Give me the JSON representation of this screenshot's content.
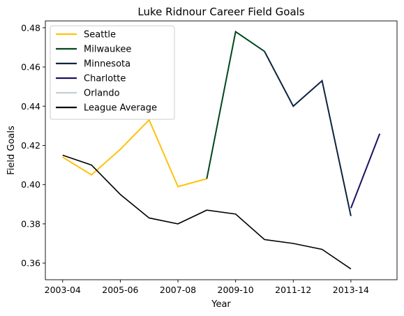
{
  "chart_data": {
    "type": "line",
    "title": "Luke Ridnour Career Field Goals",
    "xlabel": "Year",
    "ylabel": "Field Goals",
    "x_tick_labels": [
      "2003-04",
      "2005-06",
      "2007-08",
      "2009-10",
      "2011-12",
      "2013-14"
    ],
    "x_tick_positions": [
      0,
      2,
      4,
      6,
      8,
      10
    ],
    "xlim": [
      -0.6,
      11.6
    ],
    "y_ticks": [
      0.36,
      0.38,
      0.4,
      0.42,
      0.44,
      0.46,
      0.48
    ],
    "y_tick_labels": [
      "0.36",
      "0.38",
      "0.40",
      "0.42",
      "0.44",
      "0.46",
      "0.48"
    ],
    "ylim": [
      0.3515,
      0.4835
    ],
    "grid": false,
    "legend_position": "top-left",
    "series": [
      {
        "name": "Seattle",
        "color": "#FFC20E",
        "x": [
          0,
          1,
          2,
          3,
          4,
          5
        ],
        "y": [
          0.414,
          0.405,
          0.418,
          0.433,
          0.399,
          0.403
        ]
      },
      {
        "name": "Milwaukee",
        "color": "#00471B",
        "x": [
          5,
          6,
          7
        ],
        "y": [
          0.403,
          0.478,
          0.468
        ]
      },
      {
        "name": "Minnesota",
        "color": "#0C2340",
        "x": [
          7,
          8,
          9,
          10
        ],
        "y": [
          0.468,
          0.44,
          0.453,
          0.384
        ]
      },
      {
        "name": "Charlotte",
        "color": "#1D1160",
        "x": [
          10,
          11
        ],
        "y": [
          0.388,
          0.426
        ]
      },
      {
        "name": "Orlando",
        "color": "#C4CED4",
        "x": [],
        "y": []
      },
      {
        "name": "League Average",
        "color": "#000000",
        "x": [
          0,
          1,
          2,
          3,
          4,
          5,
          6,
          7,
          8,
          9,
          10
        ],
        "y": [
          0.415,
          0.41,
          0.395,
          0.383,
          0.38,
          0.387,
          0.385,
          0.372,
          0.37,
          0.367,
          0.357
        ]
      }
    ]
  }
}
